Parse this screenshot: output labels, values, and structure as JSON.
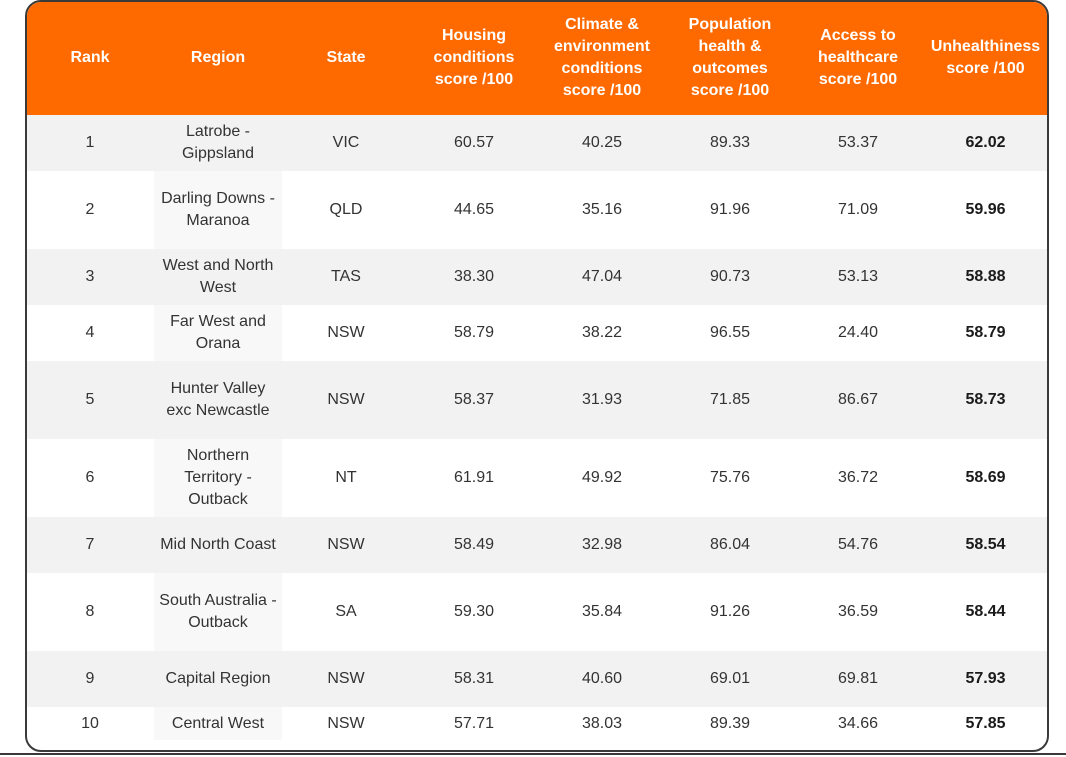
{
  "table": {
    "headers": [
      "Rank",
      "Region",
      "State",
      "Housing conditions score /100",
      "Climate & environment conditions score /100",
      "Population health & outcomes score /100",
      "Access to healthcare score /100",
      "Unhealthiness score /100"
    ],
    "rows": [
      [
        "1",
        "Latrobe - Gippsland",
        "VIC",
        "60.57",
        "40.25",
        "89.33",
        "53.37",
        "62.02"
      ],
      [
        "2",
        "Darling Downs - Maranoa",
        "QLD",
        "44.65",
        "35.16",
        "91.96",
        "71.09",
        "59.96"
      ],
      [
        "3",
        "West and North West",
        "TAS",
        "38.30",
        "47.04",
        "90.73",
        "53.13",
        "58.88"
      ],
      [
        "4",
        "Far West and Orana",
        "NSW",
        "58.79",
        "38.22",
        "96.55",
        "24.40",
        "58.79"
      ],
      [
        "5",
        "Hunter Valley exc Newcastle",
        "NSW",
        "58.37",
        "31.93",
        "71.85",
        "86.67",
        "58.73"
      ],
      [
        "6",
        "Northern Territory - Outback",
        "NT",
        "61.91",
        "49.92",
        "75.76",
        "36.72",
        "58.69"
      ],
      [
        "7",
        "Mid North Coast",
        "NSW",
        "58.49",
        "32.98",
        "86.04",
        "54.76",
        "58.54"
      ],
      [
        "8",
        "South Australia - Outback",
        "SA",
        "59.30",
        "35.84",
        "91.26",
        "36.59",
        "58.44"
      ],
      [
        "9",
        "Capital Region",
        "NSW",
        "58.31",
        "40.60",
        "69.01",
        "69.81",
        "57.93"
      ],
      [
        "10",
        "Central West",
        "NSW",
        "57.71",
        "38.03",
        "89.39",
        "34.66",
        "57.85"
      ]
    ]
  },
  "colors": {
    "header_bg": "#ff6a00",
    "header_text": "#ffffff",
    "row_shade": "#f2f2f2"
  }
}
